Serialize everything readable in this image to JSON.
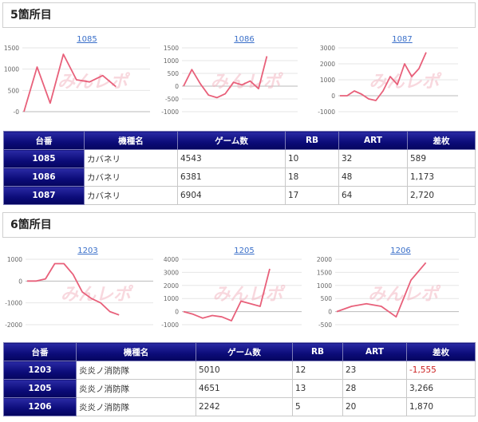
{
  "sections": [
    {
      "title": "5箇所目",
      "charts": [
        {
          "link": "1085",
          "yticks": [
            0,
            500,
            1000,
            1500
          ],
          "ylim": [
            0,
            1500
          ],
          "values": [
            0,
            1050,
            200,
            1350,
            750,
            700,
            850,
            589
          ]
        },
        {
          "link": "1086",
          "yticks": [
            -1000,
            -500,
            0,
            500,
            1000,
            1500
          ],
          "ylim": [
            -1000,
            1500
          ],
          "values": [
            0,
            650,
            100,
            -350,
            -450,
            -300,
            150,
            50,
            200,
            -100,
            1173
          ]
        },
        {
          "link": "1087",
          "yticks": [
            -1000,
            0,
            1000,
            2000,
            3000
          ],
          "ylim": [
            -1000,
            3000
          ],
          "values": [
            0,
            0,
            300,
            100,
            -200,
            -300,
            300,
            1200,
            700,
            2000,
            1200,
            1700,
            2720
          ]
        }
      ],
      "headers": [
        "台番",
        "機種名",
        "ゲーム数",
        "RB",
        "ART",
        "差枚"
      ],
      "rows": [
        {
          "no": "1085",
          "name": "カバネリ",
          "games": "4543",
          "rb": "10",
          "art": "32",
          "diff": "589",
          "negative": false
        },
        {
          "no": "1086",
          "name": "カバネリ",
          "games": "6381",
          "rb": "18",
          "art": "48",
          "diff": "1,173",
          "negative": false
        },
        {
          "no": "1087",
          "name": "カバネリ",
          "games": "6904",
          "rb": "17",
          "art": "64",
          "diff": "2,720",
          "negative": false
        }
      ]
    },
    {
      "title": "6箇所目",
      "charts": [
        {
          "link": "1203",
          "yticks": [
            -2000,
            -1000,
            0,
            1000
          ],
          "ylim": [
            -2000,
            1000
          ],
          "values": [
            0,
            0,
            100,
            800,
            800,
            300,
            -500,
            -800,
            -1000,
            -1400,
            -1555
          ]
        },
        {
          "link": "1205",
          "yticks": [
            -1000,
            0,
            1000,
            2000,
            3000,
            4000
          ],
          "ylim": [
            -1000,
            4000
          ],
          "values": [
            0,
            -200,
            -500,
            -300,
            -400,
            -700,
            800,
            600,
            400,
            3266
          ]
        },
        {
          "link": "1206",
          "yticks": [
            -500,
            0,
            500,
            1000,
            1500,
            2000
          ],
          "ylim": [
            -500,
            2000
          ],
          "values": [
            0,
            200,
            300,
            200,
            -200,
            1200,
            1870
          ]
        }
      ],
      "headers": [
        "台番",
        "機種名",
        "ゲーム数",
        "RB",
        "ART",
        "差枚"
      ],
      "rows": [
        {
          "no": "1203",
          "name": "炎炎ノ消防隊",
          "games": "5010",
          "rb": "12",
          "art": "23",
          "diff": "-1,555",
          "negative": true
        },
        {
          "no": "1205",
          "name": "炎炎ノ消防隊",
          "games": "4651",
          "rb": "13",
          "art": "28",
          "diff": "3,266",
          "negative": false
        },
        {
          "no": "1206",
          "name": "炎炎ノ消防隊",
          "games": "2242",
          "rb": "5",
          "art": "20",
          "diff": "1,870",
          "negative": false
        }
      ]
    }
  ],
  "watermark": "みんレポ",
  "colors": {
    "line": "#e8607a",
    "header_bg": "#0b0b78",
    "link": "#3a6fc9",
    "negative": "#cc2222"
  }
}
